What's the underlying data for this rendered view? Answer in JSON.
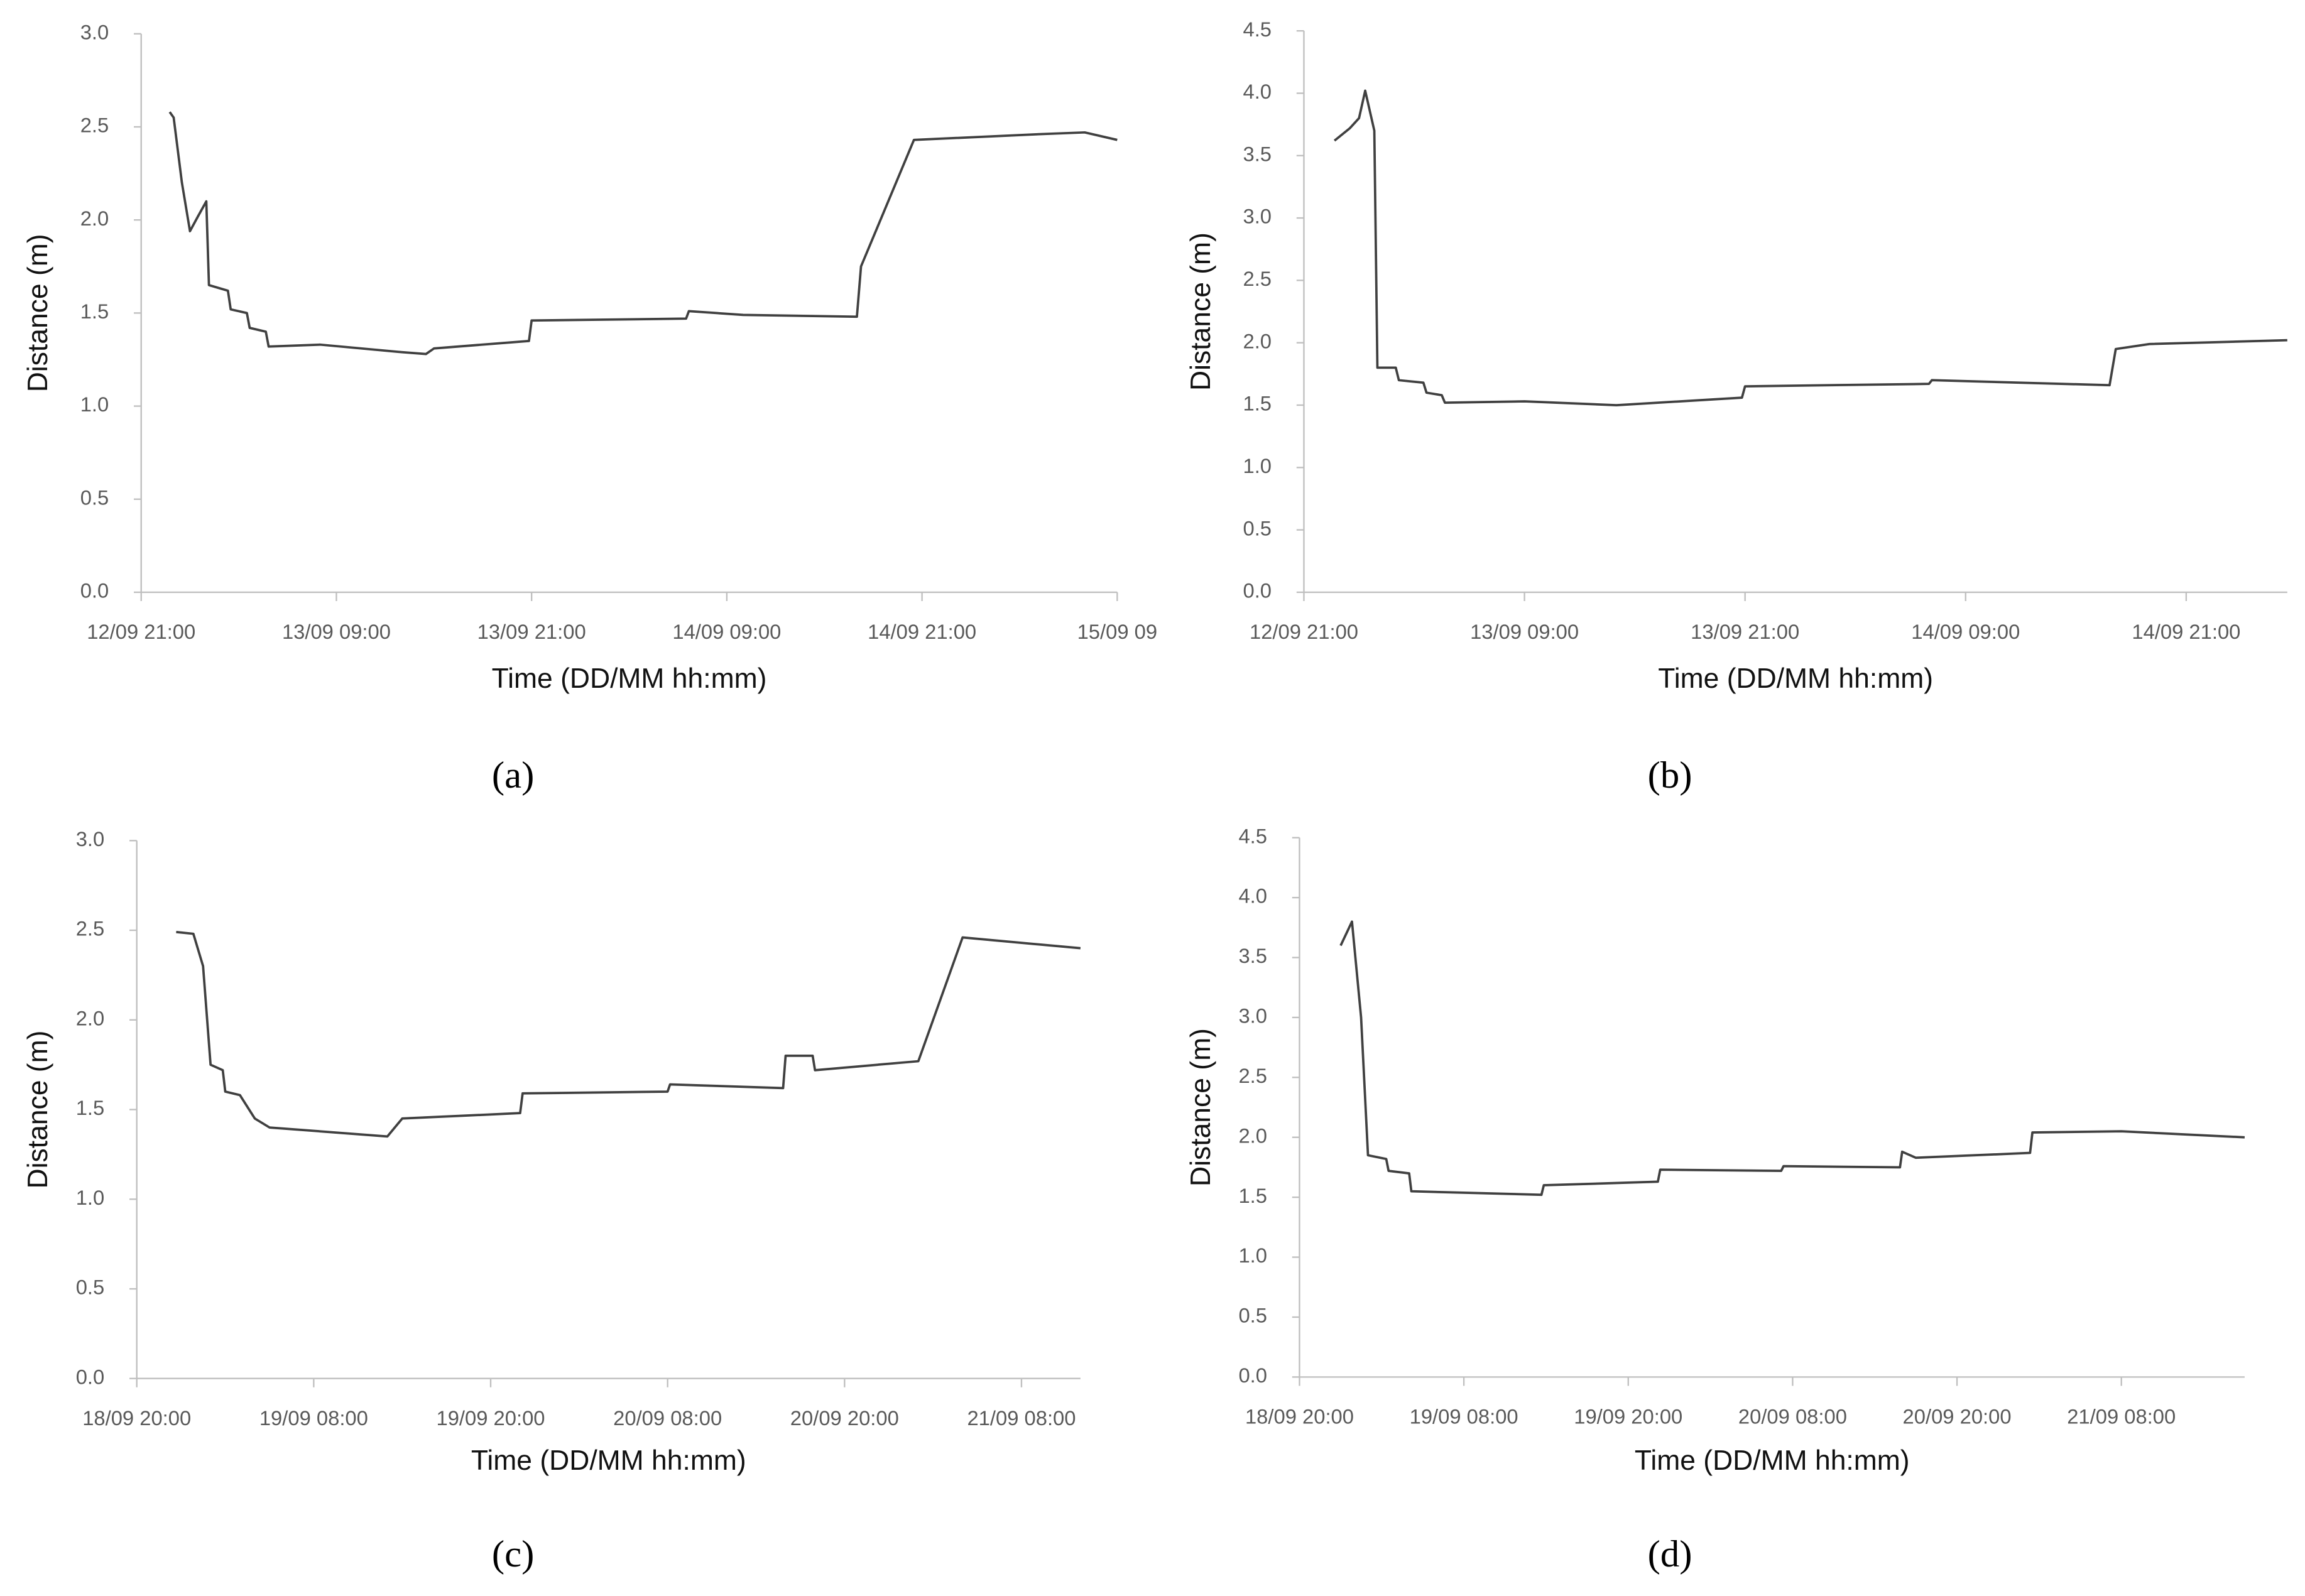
{
  "chart_data": [
    {
      "type": "line",
      "label": "(a)",
      "xlabel": "Time (DD/MM hh:mm)",
      "ylabel": "Distance (m)",
      "color": "#404040",
      "xlim": [
        "12/09 21:00",
        "15/09 09:00"
      ],
      "xticks": [
        "12/09 21:00",
        "13/09 09:00",
        "13/09 21:00",
        "14/09 09:00",
        "14/09 21:00",
        {
          "value": "15/09 09:00",
          "label": "15/09 09"
        }
      ],
      "ylim": [
        0,
        3
      ],
      "yticks": [
        {
          "value": 0,
          "label": "0.0"
        },
        0.5,
        {
          "value": 1,
          "label": "1.0"
        },
        1.5,
        {
          "value": 2,
          "label": "2.0"
        },
        2.5,
        {
          "value": 3,
          "label": "3.0"
        }
      ],
      "x": [
        "12/09 22:45",
        "12/09 23:00",
        "12/09 23:30",
        "13/09 00:00",
        "13/09 00:30",
        "13/09 01:00",
        "13/09 01:10",
        "13/09 02:20",
        "13/09 02:30",
        "13/09 03:30",
        "13/09 03:40",
        "13/09 04:40",
        "13/09 04:50",
        "13/09 08:00",
        "13/09 13:00",
        "13/09 14:30",
        "13/09 15:00",
        "13/09 20:50",
        "13/09 21:00",
        "14/09 06:30",
        "14/09 06:40",
        "14/09 10:00",
        "14/09 17:00",
        "14/09 17:15",
        "14/09 20:30",
        "15/09 04:00",
        "15/09 07:00",
        "15/09 09:00"
      ],
      "values": [
        2.58,
        2.55,
        2.2,
        1.94,
        2.02,
        2.1,
        1.65,
        1.62,
        1.52,
        1.5,
        1.42,
        1.4,
        1.32,
        1.33,
        1.29,
        1.28,
        1.31,
        1.35,
        1.46,
        1.47,
        1.51,
        1.49,
        1.48,
        1.75,
        2.43,
        2.46,
        2.47,
        2.43
      ]
    },
    {
      "type": "line",
      "label": "(b)",
      "xlabel": "Time (DD/MM hh:mm)",
      "ylabel": "Distance (m)",
      "color": "#404040",
      "xlim": [
        "12/09 21:00",
        "15/09 02:30"
      ],
      "xticks": [
        "12/09 21:00",
        "13/09 09:00",
        "13/09 21:00",
        "14/09 09:00",
        "14/09 21:00"
      ],
      "ylim": [
        0,
        4.5
      ],
      "yticks": [
        {
          "value": 0,
          "label": "0.0"
        },
        0.5,
        {
          "value": 1,
          "label": "1.0"
        },
        1.5,
        {
          "value": 2,
          "label": "2.0"
        },
        2.5,
        {
          "value": 3,
          "label": "3.0"
        },
        3.5,
        {
          "value": 4,
          "label": "4.0"
        },
        4.5
      ],
      "x": [
        "12/09 22:40",
        "12/09 23:30",
        "13/09 00:00",
        "13/09 00:20",
        "13/09 00:50",
        "13/09 01:00",
        "13/09 02:00",
        "13/09 02:10",
        "13/09 03:30",
        "13/09 03:40",
        "13/09 04:30",
        "13/09 04:40",
        "13/09 09:00",
        "13/09 14:00",
        "13/09 20:50",
        "13/09 21:00",
        "14/09 07:00",
        "14/09 07:10",
        "14/09 16:50",
        "14/09 17:10",
        "14/09 19:00",
        "15/09 02:30"
      ],
      "values": [
        3.62,
        3.72,
        3.8,
        4.02,
        3.7,
        1.8,
        1.8,
        1.7,
        1.68,
        1.6,
        1.58,
        1.52,
        1.53,
        1.5,
        1.56,
        1.65,
        1.67,
        1.7,
        1.66,
        1.95,
        1.99,
        2.02
      ]
    },
    {
      "type": "line",
      "label": "(c)",
      "xlabel": "Time (DD/MM hh:mm)",
      "ylabel": "Distance (m)",
      "color": "#404040",
      "xlim": [
        "18/09 20:00",
        "21/09 12:00"
      ],
      "xticks": [
        "18/09 20:00",
        "19/09 08:00",
        "19/09 20:00",
        "20/09 08:00",
        "20/09 20:00",
        "21/09 08:00"
      ],
      "ylim": [
        0,
        3
      ],
      "yticks": [
        {
          "value": 0,
          "label": "0.0"
        },
        0.5,
        {
          "value": 1,
          "label": "1.0"
        },
        1.5,
        {
          "value": 2,
          "label": "2.0"
        },
        2.5,
        {
          "value": 3,
          "label": "3.0"
        }
      ],
      "x": [
        "18/09 22:40",
        "18/09 23:50",
        "19/09 00:30",
        "19/09 01:00",
        "19/09 01:50",
        "19/09 02:00",
        "19/09 03:00",
        "19/09 04:00",
        "19/09 05:00",
        "19/09 13:00",
        "19/09 14:00",
        "19/09 22:00",
        "19/09 22:10",
        "20/09 08:00",
        "20/09 08:10",
        "20/09 15:50",
        "20/09 16:00",
        "20/09 17:50",
        "20/09 18:00",
        "21/09 01:00",
        "21/09 04:00",
        "21/09 12:00"
      ],
      "values": [
        2.49,
        2.48,
        2.3,
        1.75,
        1.72,
        1.6,
        1.58,
        1.45,
        1.4,
        1.35,
        1.45,
        1.48,
        1.59,
        1.6,
        1.64,
        1.62,
        1.8,
        1.8,
        1.72,
        1.77,
        2.46,
        2.4
      ]
    },
    {
      "type": "line",
      "label": "(d)",
      "xlabel": "Time (DD/MM hh:mm)",
      "ylabel": "Distance (m)",
      "color": "#404040",
      "xlim": [
        "18/09 20:00",
        "21/09 17:00"
      ],
      "xticks": [
        "18/09 20:00",
        "19/09 08:00",
        "19/09 20:00",
        "20/09 08:00",
        "20/09 20:00",
        "21/09 08:00"
      ],
      "ylim": [
        0,
        4.5
      ],
      "yticks": [
        {
          "value": 0,
          "label": "0.0"
        },
        0.5,
        {
          "value": 1,
          "label": "1.0"
        },
        1.5,
        {
          "value": 2,
          "label": "2.0"
        },
        2.5,
        {
          "value": 3,
          "label": "3.0"
        },
        3.5,
        {
          "value": 4,
          "label": "4.0"
        },
        4.5
      ],
      "x": [
        "18/09 23:00",
        "18/09 23:50",
        "19/09 00:30",
        "19/09 01:00",
        "19/09 02:20",
        "19/09 02:30",
        "19/09 04:00",
        "19/09 04:10",
        "19/09 13:40",
        "19/09 13:50",
        "19/09 22:10",
        "19/09 22:20",
        "20/09 07:10",
        "20/09 07:20",
        "20/09 15:50",
        "20/09 16:00",
        "20/09 17:00",
        "21/09 01:20",
        "21/09 01:30",
        "21/09 08:00",
        "21/09 17:00"
      ],
      "values": [
        3.6,
        3.8,
        3.0,
        1.85,
        1.82,
        1.72,
        1.7,
        1.55,
        1.52,
        1.6,
        1.63,
        1.73,
        1.72,
        1.76,
        1.75,
        1.88,
        1.83,
        1.87,
        2.04,
        2.05,
        2.0
      ]
    }
  ]
}
